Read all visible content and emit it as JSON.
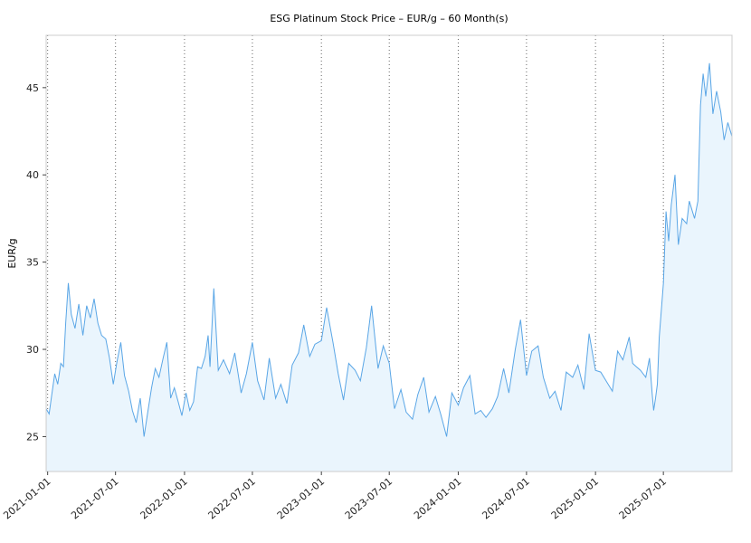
{
  "chart_data": {
    "type": "area",
    "title": "ESG Platinum Stock Price – EUR/g – 60 Month(s)",
    "ylabel": "EUR/g",
    "xlabel": "",
    "ylim": [
      23,
      48
    ],
    "xlim": [
      "2020-12-28",
      "2025-12-31"
    ],
    "yticks": [
      25,
      30,
      35,
      40,
      45
    ],
    "xticks": [
      "2021-01-01",
      "2021-07-01",
      "2022-01-01",
      "2022-07-01",
      "2023-01-01",
      "2023-07-01",
      "2024-01-01",
      "2024-07-01",
      "2025-01-01",
      "2025-07-01"
    ],
    "grid": "vertical dotted at x ticks",
    "colors": {
      "line": "#5aa6e6",
      "fill": "#eaf5fd",
      "grid": "#666666",
      "frame": "#cccccc"
    },
    "series": [
      {
        "x": [
          "2020-12-28",
          "2021-01-05",
          "2021-01-12",
          "2021-01-20",
          "2021-01-28",
          "2021-02-05",
          "2021-02-12",
          "2021-02-18",
          "2021-02-25",
          "2021-03-05",
          "2021-03-15",
          "2021-03-25",
          "2021-04-05",
          "2021-04-15",
          "2021-04-25",
          "2021-05-05",
          "2021-05-15",
          "2021-05-25",
          "2021-06-05",
          "2021-06-15",
          "2021-06-25",
          "2021-07-05",
          "2021-07-15",
          "2021-07-25",
          "2021-08-05",
          "2021-08-15",
          "2021-08-25",
          "2021-09-05",
          "2021-09-15",
          "2021-09-25",
          "2021-10-05",
          "2021-10-15",
          "2021-10-25",
          "2021-11-05",
          "2021-11-15",
          "2021-11-25",
          "2021-12-05",
          "2021-12-15",
          "2021-12-25",
          "2022-01-05",
          "2022-01-15",
          "2022-01-25",
          "2022-02-05",
          "2022-02-15",
          "2022-02-25",
          "2022-03-05",
          "2022-03-10",
          "2022-03-20",
          "2022-04-01",
          "2022-04-15",
          "2022-05-01",
          "2022-05-15",
          "2022-06-01",
          "2022-06-15",
          "2022-07-01",
          "2022-07-15",
          "2022-08-01",
          "2022-08-15",
          "2022-09-01",
          "2022-09-15",
          "2022-10-01",
          "2022-10-15",
          "2022-11-01",
          "2022-11-15",
          "2022-12-01",
          "2022-12-15",
          "2023-01-01",
          "2023-01-15",
          "2023-02-01",
          "2023-02-15",
          "2023-03-01",
          "2023-03-15",
          "2023-04-01",
          "2023-04-15",
          "2023-05-01",
          "2023-05-15",
          "2023-06-01",
          "2023-06-15",
          "2023-07-01",
          "2023-07-15",
          "2023-08-01",
          "2023-08-15",
          "2023-09-01",
          "2023-09-15",
          "2023-10-01",
          "2023-10-15",
          "2023-11-01",
          "2023-11-15",
          "2023-12-01",
          "2023-12-15",
          "2024-01-01",
          "2024-01-15",
          "2024-02-01",
          "2024-02-15",
          "2024-03-01",
          "2024-03-15",
          "2024-04-01",
          "2024-04-15",
          "2024-05-01",
          "2024-05-15",
          "2024-06-01",
          "2024-06-15",
          "2024-07-01",
          "2024-07-15",
          "2024-08-01",
          "2024-08-15",
          "2024-09-01",
          "2024-09-15",
          "2024-10-01",
          "2024-10-15",
          "2024-11-01",
          "2024-11-15",
          "2024-12-01",
          "2024-12-15",
          "2025-01-01",
          "2025-01-15",
          "2025-02-01",
          "2025-02-15",
          "2025-03-01",
          "2025-03-15",
          "2025-04-01",
          "2025-04-10",
          "2025-04-20",
          "2025-05-01",
          "2025-05-15",
          "2025-05-25",
          "2025-06-01",
          "2025-06-05",
          "2025-06-10",
          "2025-06-15",
          "2025-06-20",
          "2025-07-01",
          "2025-07-08",
          "2025-07-15",
          "2025-07-22",
          "2025-08-01",
          "2025-08-10",
          "2025-08-20",
          "2025-09-01",
          "2025-09-08",
          "2025-09-15",
          "2025-09-22",
          "2025-10-01",
          "2025-10-08",
          "2025-10-15",
          "2025-10-22",
          "2025-11-01",
          "2025-11-10",
          "2025-11-20",
          "2025-12-01",
          "2025-12-10",
          "2025-12-20",
          "2025-12-31"
        ],
        "y": [
          26.6,
          26.3,
          27.4,
          28.6,
          28.0,
          29.2,
          29.0,
          31.5,
          33.8,
          32.0,
          31.2,
          32.6,
          30.8,
          32.5,
          31.8,
          32.9,
          31.5,
          30.8,
          30.6,
          29.5,
          28.0,
          29.3,
          30.4,
          28.5,
          27.6,
          26.5,
          25.8,
          27.2,
          25.0,
          26.4,
          27.8,
          28.9,
          28.4,
          29.5,
          30.4,
          27.2,
          27.8,
          27.0,
          26.2,
          27.5,
          26.5,
          27.0,
          29.0,
          28.9,
          29.6,
          30.8,
          29.0,
          33.5,
          28.8,
          29.4,
          28.6,
          29.8,
          27.5,
          28.6,
          30.4,
          28.2,
          27.1,
          29.5,
          27.2,
          28.0,
          26.9,
          29.1,
          29.8,
          31.4,
          29.6,
          30.3,
          30.5,
          32.4,
          30.4,
          28.6,
          27.1,
          29.2,
          28.8,
          28.2,
          30.1,
          32.5,
          28.9,
          30.2,
          29.2,
          26.6,
          27.7,
          26.4,
          26.0,
          27.4,
          28.4,
          26.4,
          27.3,
          26.3,
          25.0,
          27.5,
          26.8,
          27.8,
          28.5,
          26.3,
          26.5,
          26.1,
          26.6,
          27.3,
          28.9,
          27.5,
          30.0,
          31.7,
          28.5,
          29.9,
          30.2,
          28.4,
          27.2,
          27.6,
          26.5,
          28.7,
          28.4,
          29.1,
          27.7,
          30.9,
          28.8,
          28.7,
          28.1,
          27.6,
          29.9,
          29.4,
          30.7,
          29.2,
          29.0,
          28.8,
          28.4,
          29.5,
          27.5,
          26.5,
          27.2,
          28.0,
          30.7,
          33.8,
          37.9,
          36.2,
          38.3,
          40.0,
          36.0,
          37.5,
          37.2,
          38.5,
          38.0,
          37.5,
          38.5,
          44.0,
          45.8,
          44.5,
          46.4,
          43.5,
          44.8,
          43.6,
          42.0,
          43.0,
          42.2
        ]
      }
    ]
  }
}
